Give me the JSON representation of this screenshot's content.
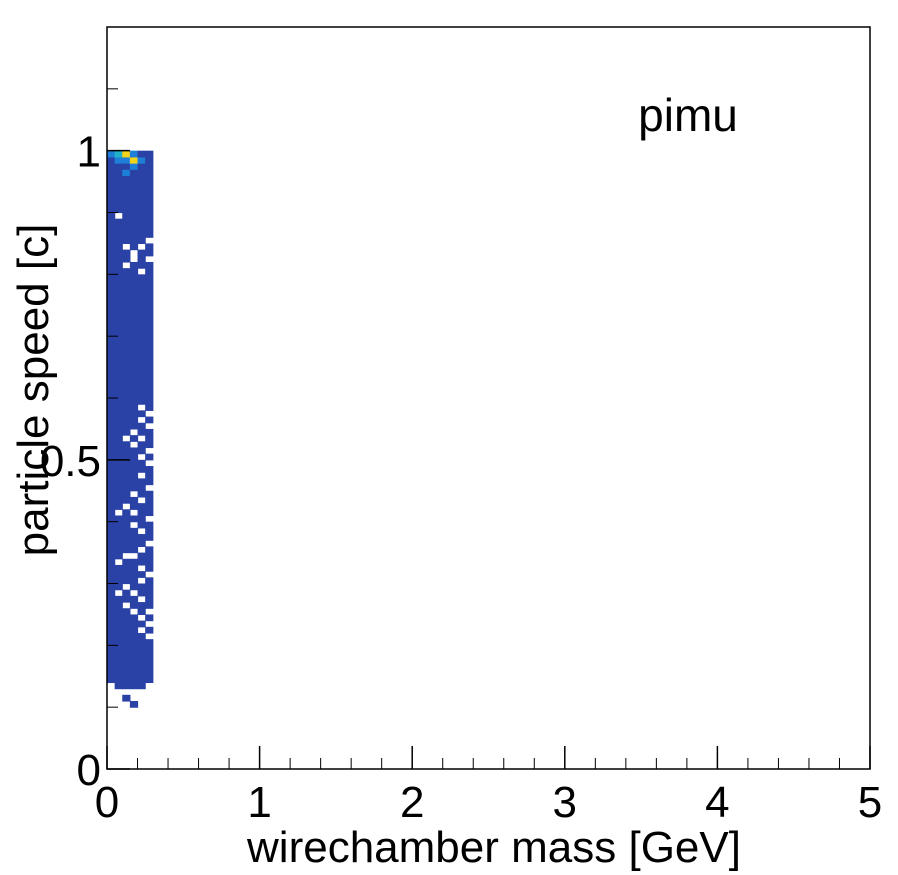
{
  "chart_data": {
    "type": "heatmap",
    "title": "",
    "annotation": "pimu",
    "xlabel": "wirechamber mass [GeV]",
    "ylabel": "particle speed [c]",
    "xlim": [
      0,
      5
    ],
    "ylim": [
      0,
      1.2
    ],
    "xticks": [
      0,
      1,
      2,
      3,
      4,
      5
    ],
    "xtick_labels": [
      "0",
      "1",
      "2",
      "3",
      "4",
      "5"
    ],
    "yticks": [
      0,
      0.5,
      1
    ],
    "ytick_labels": [
      "0",
      "0.5",
      "1"
    ],
    "grid": false,
    "legend": "none",
    "colors": {
      "low": "#2a42a6",
      "mid": "#1e7fd8",
      "midhigh": "#20b2c8",
      "high": "#f2d21b",
      "axis": "#000000",
      "background": "#ffffff"
    },
    "bin_width_x": 0.05,
    "bin_height_y": 0.01,
    "regions": [
      {
        "x": [
          0.0,
          0.3
        ],
        "y": [
          0.13,
          0.99
        ],
        "level": "low"
      }
    ],
    "sparse_bins": [
      {
        "x": 0.1,
        "y": 0.11,
        "level": "low"
      },
      {
        "x": 0.15,
        "y": 0.1,
        "level": "low"
      }
    ],
    "empty_bins": [
      {
        "x": 0.05,
        "y": 0.89
      },
      {
        "x": 0.25,
        "y": 0.85
      },
      {
        "x": 0.1,
        "y": 0.84
      },
      {
        "x": 0.2,
        "y": 0.84
      },
      {
        "x": 0.15,
        "y": 0.83
      },
      {
        "x": 0.25,
        "y": 0.82
      },
      {
        "x": 0.1,
        "y": 0.81
      },
      {
        "x": 0.2,
        "y": 0.8
      },
      {
        "x": 0.15,
        "y": 0.82
      },
      {
        "x": 0.2,
        "y": 0.58
      },
      {
        "x": 0.25,
        "y": 0.57
      },
      {
        "x": 0.2,
        "y": 0.56
      },
      {
        "x": 0.25,
        "y": 0.55
      },
      {
        "x": 0.15,
        "y": 0.54
      },
      {
        "x": 0.1,
        "y": 0.53
      },
      {
        "x": 0.2,
        "y": 0.53
      },
      {
        "x": 0.15,
        "y": 0.52
      },
      {
        "x": 0.25,
        "y": 0.51
      },
      {
        "x": 0.2,
        "y": 0.5
      },
      {
        "x": 0.25,
        "y": 0.49
      },
      {
        "x": 0.2,
        "y": 0.47
      },
      {
        "x": 0.25,
        "y": 0.45
      },
      {
        "x": 0.15,
        "y": 0.44
      },
      {
        "x": 0.2,
        "y": 0.43
      },
      {
        "x": 0.1,
        "y": 0.42
      },
      {
        "x": 0.15,
        "y": 0.41
      },
      {
        "x": 0.05,
        "y": 0.41
      },
      {
        "x": 0.25,
        "y": 0.4
      },
      {
        "x": 0.15,
        "y": 0.39
      },
      {
        "x": 0.2,
        "y": 0.38
      },
      {
        "x": 0.25,
        "y": 0.36
      },
      {
        "x": 0.2,
        "y": 0.35
      },
      {
        "x": 0.15,
        "y": 0.34
      },
      {
        "x": 0.1,
        "y": 0.34
      },
      {
        "x": 0.05,
        "y": 0.33
      },
      {
        "x": 0.2,
        "y": 0.32
      },
      {
        "x": 0.25,
        "y": 0.31
      },
      {
        "x": 0.2,
        "y": 0.3
      },
      {
        "x": 0.1,
        "y": 0.29
      },
      {
        "x": 0.05,
        "y": 0.28
      },
      {
        "x": 0.15,
        "y": 0.28
      },
      {
        "x": 0.2,
        "y": 0.27
      },
      {
        "x": 0.1,
        "y": 0.26
      },
      {
        "x": 0.15,
        "y": 0.25
      },
      {
        "x": 0.25,
        "y": 0.25
      },
      {
        "x": 0.2,
        "y": 0.24
      },
      {
        "x": 0.25,
        "y": 0.23
      },
      {
        "x": 0.2,
        "y": 0.22
      },
      {
        "x": 0.25,
        "y": 0.21
      },
      {
        "x": 0.0,
        "y": 0.13
      },
      {
        "x": 0.25,
        "y": 0.13
      }
    ],
    "hot_bins": [
      {
        "x": 0.05,
        "y": 0.99,
        "level": "midhigh"
      },
      {
        "x": 0.1,
        "y": 0.99,
        "level": "high"
      },
      {
        "x": 0.15,
        "y": 0.98,
        "level": "high"
      },
      {
        "x": 0.15,
        "y": 0.99,
        "level": "mid"
      },
      {
        "x": 0.0,
        "y": 0.99,
        "level": "mid"
      },
      {
        "x": 0.2,
        "y": 0.98,
        "level": "mid"
      },
      {
        "x": 0.1,
        "y": 0.98,
        "level": "mid"
      },
      {
        "x": 0.15,
        "y": 0.97,
        "level": "mid"
      },
      {
        "x": 0.05,
        "y": 0.98,
        "level": "mid"
      },
      {
        "x": 0.1,
        "y": 0.96,
        "level": "mid"
      }
    ]
  }
}
